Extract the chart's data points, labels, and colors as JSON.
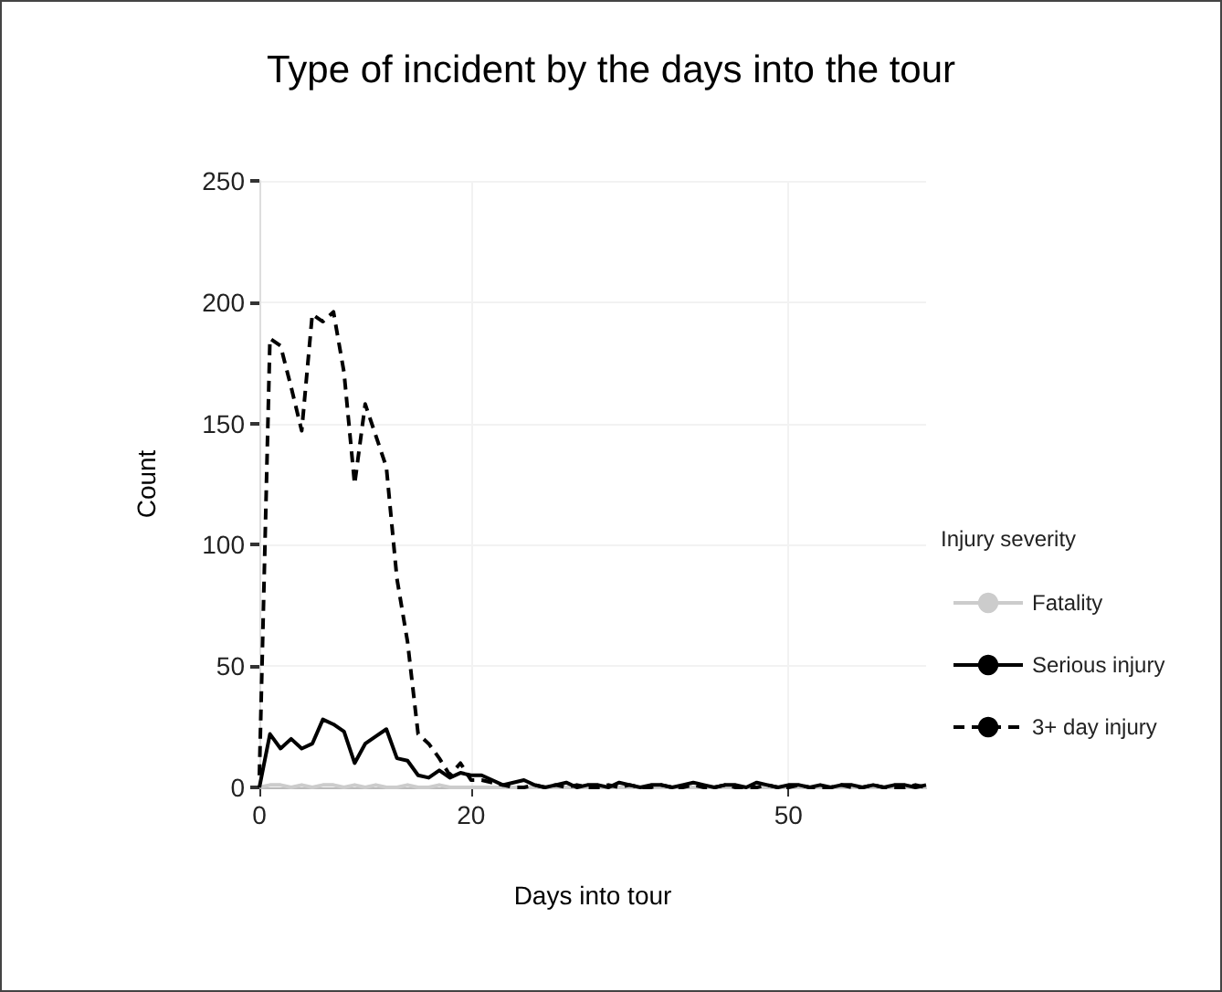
{
  "chart_data": {
    "type": "line",
    "title": "Type of incident by the days into the tour",
    "xlabel": "Days into tour",
    "ylabel": "Count",
    "legend_title": "Injury severity",
    "legend": "right",
    "grid": true,
    "marker": "none",
    "x": [
      0,
      1,
      2,
      3,
      4,
      5,
      6,
      7,
      8,
      9,
      10,
      11,
      12,
      13,
      14,
      15,
      16,
      17,
      18,
      19,
      20,
      21,
      22,
      23,
      24,
      25,
      26,
      27,
      28,
      29,
      30,
      31,
      32,
      33,
      34,
      35,
      36,
      37,
      38,
      39,
      40,
      41,
      42,
      43,
      44,
      45,
      46,
      47,
      48,
      49,
      50,
      51,
      52,
      53,
      54,
      55,
      56,
      57,
      58,
      59,
      60,
      61,
      62,
      63
    ],
    "xlim": [
      0,
      63
    ],
    "xticks": [
      0,
      20,
      50
    ],
    "ylim": [
      0,
      250
    ],
    "yticks": [
      0,
      50,
      100,
      150,
      200,
      250
    ],
    "series": [
      {
        "name": "Fatality",
        "color": "#cccccc",
        "line_style": "solid",
        "values": [
          0,
          1,
          1,
          0,
          1,
          0,
          1,
          1,
          0,
          1,
          0,
          1,
          0,
          0,
          1,
          0,
          0,
          1,
          0,
          0,
          0,
          0,
          0,
          0,
          0,
          0,
          0,
          0,
          0,
          0,
          0,
          0,
          0,
          0,
          0,
          0,
          0,
          0,
          0,
          0,
          0,
          0,
          0,
          0,
          0,
          0,
          0,
          0,
          0,
          0,
          0,
          0,
          0,
          0,
          0,
          0,
          0,
          0,
          0,
          0,
          0,
          0,
          0,
          0
        ]
      },
      {
        "name": "Serious injury",
        "color": "#000000",
        "line_style": "solid",
        "values": [
          0,
          22,
          16,
          20,
          16,
          18,
          28,
          26,
          23,
          10,
          18,
          21,
          24,
          12,
          11,
          5,
          4,
          7,
          4,
          6,
          5,
          5,
          3,
          1,
          2,
          3,
          1,
          0,
          1,
          2,
          0,
          1,
          1,
          0,
          2,
          1,
          0,
          1,
          1,
          0,
          1,
          2,
          1,
          0,
          1,
          1,
          0,
          2,
          1,
          0,
          1,
          1,
          0,
          1,
          0,
          1,
          1,
          0,
          1,
          0,
          1,
          1,
          0,
          1
        ]
      },
      {
        "name": "3+ day injury",
        "color": "#000000",
        "line_style": "dashed",
        "values": [
          5,
          185,
          182,
          165,
          147,
          195,
          192,
          196,
          171,
          125,
          158,
          145,
          132,
          86,
          60,
          22,
          18,
          12,
          5,
          10,
          3,
          3,
          2,
          1,
          0,
          0,
          1,
          0,
          1,
          0,
          1,
          0,
          0,
          1,
          0,
          1,
          0,
          0,
          1,
          0,
          0,
          1,
          0,
          0,
          1,
          0,
          0,
          0,
          1,
          0,
          0,
          1,
          0,
          0,
          0,
          1,
          0,
          0,
          1,
          0,
          0,
          0,
          1,
          0
        ]
      }
    ]
  }
}
